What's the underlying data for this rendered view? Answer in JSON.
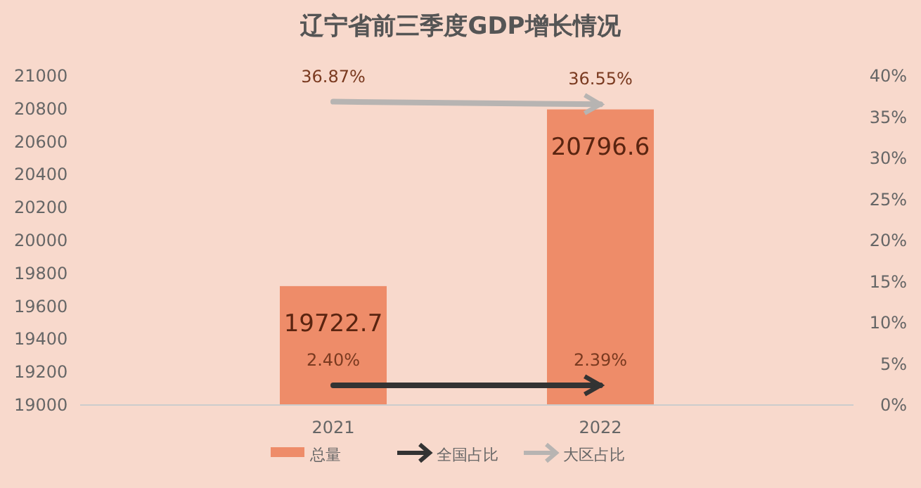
{
  "chart_data": {
    "type": "bar",
    "title": "辽宁省前三季度GDP增长情况",
    "categories": [
      "2021",
      "2022"
    ],
    "series": [
      {
        "name": "总量",
        "color": "#ee8c69",
        "values": [
          19722.7,
          20796.6
        ],
        "value_labels": [
          "19722.7",
          "20796.6"
        ]
      },
      {
        "name": "全国占比",
        "type": "line",
        "axis": "y2",
        "color": "#333333",
        "values": [
          2.4,
          2.39
        ],
        "value_labels": [
          "2.40%",
          "2.39%"
        ]
      },
      {
        "name": "大区占比",
        "type": "line",
        "axis": "y2",
        "color": "#b7b4b2",
        "values": [
          36.87,
          36.55
        ],
        "value_labels": [
          "36.87%",
          "36.55%"
        ]
      }
    ],
    "ylim": [
      19000,
      21000
    ],
    "yticks": [
      19000,
      19200,
      19400,
      19600,
      19800,
      20000,
      20200,
      20400,
      20600,
      20800,
      21000
    ],
    "y2lim": [
      0,
      40
    ],
    "y2ticks": [
      {
        "value": 0,
        "label": "0%"
      },
      {
        "value": 5,
        "label": "5%"
      },
      {
        "value": 10,
        "label": "10%"
      },
      {
        "value": 15,
        "label": "15%"
      },
      {
        "value": 20,
        "label": "20%"
      },
      {
        "value": 25,
        "label": "25%"
      },
      {
        "value": 30,
        "label": "30%"
      },
      {
        "value": 35,
        "label": "35%"
      },
      {
        "value": 40,
        "label": "40%"
      }
    ],
    "grid": false,
    "legend": "bottom"
  }
}
